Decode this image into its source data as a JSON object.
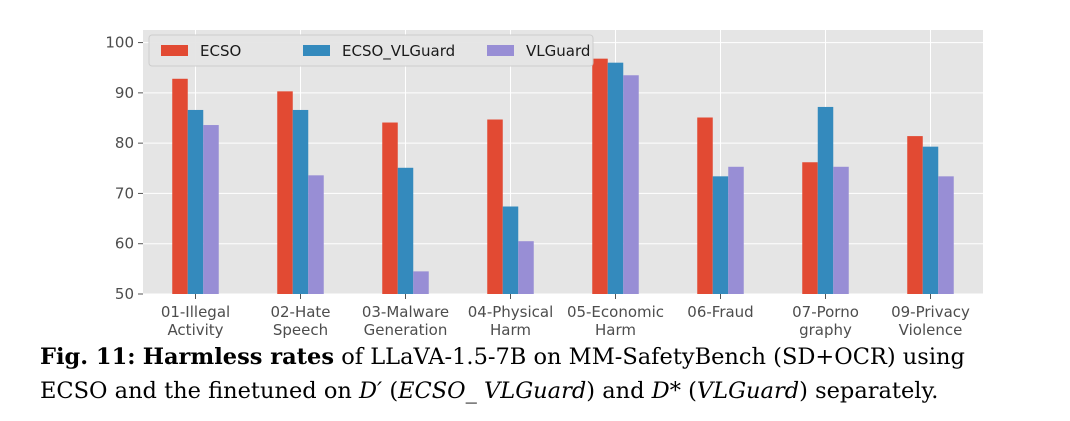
{
  "chart_data": {
    "type": "bar",
    "categories": [
      [
        "01-Illegal",
        "Activity"
      ],
      [
        "02-Hate",
        "Speech"
      ],
      [
        "03-Malware",
        "Generation"
      ],
      [
        "04-Physical",
        "Harm"
      ],
      [
        "05-Economic",
        "Harm"
      ],
      [
        "06-Fraud"
      ],
      [
        "07-Porno",
        "graphy"
      ],
      [
        "09-Privacy",
        "Violence"
      ]
    ],
    "series": [
      {
        "name": "ECSO",
        "color": "#e24a33",
        "values": [
          92.8,
          90.3,
          84.1,
          84.7,
          96.8,
          85.1,
          76.2,
          81.4
        ]
      },
      {
        "name": "ECSO_VLGuard",
        "color": "#348abd",
        "values": [
          86.6,
          86.6,
          75.1,
          67.4,
          96.0,
          73.4,
          87.2,
          79.3
        ]
      },
      {
        "name": "VLGuard",
        "color": "#988ed5",
        "values": [
          83.6,
          73.6,
          54.5,
          60.5,
          93.5,
          75.3,
          75.3,
          73.4
        ]
      }
    ],
    "ylim": [
      50,
      102.5
    ],
    "yticks": [
      "50",
      "60",
      "70",
      "80",
      "90",
      "100"
    ],
    "grid": true,
    "legend_position": "top",
    "background": "#e5e5e5"
  },
  "caption": {
    "label": "Fig. 11:",
    "title": "Harmless rates",
    "text1": "of LLaVA-1.5-7B on MM-SafetyBench (SD+OCR) using",
    "text2a": "ECSO and the finetuned on",
    "d_prime": "D′",
    "paren1": "ECSO_ VLGuard",
    "and": "and",
    "d_star": "D*",
    "paren2": "VLGuard",
    "text2b": "separately."
  }
}
